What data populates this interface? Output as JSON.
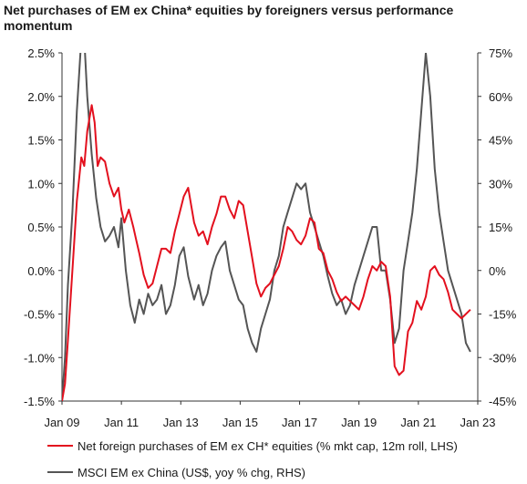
{
  "chart_data": {
    "type": "line",
    "title": "Net purchases of EM ex China* equities by foreigners versus performance momentum",
    "x_ticks": [
      "Jan 09",
      "Jan 11",
      "Jan 13",
      "Jan 15",
      "Jan 17",
      "Jan 19",
      "Jan 21",
      "Jan 23"
    ],
    "x_range": [
      2009.0,
      2023.0
    ],
    "y_left": {
      "ticks": [
        "2.5%",
        "2.0%",
        "1.5%",
        "1.0%",
        "0.5%",
        "0.0%",
        "-0.5%",
        "-1.0%",
        "-1.5%"
      ],
      "range": [
        -1.5,
        2.5
      ]
    },
    "y_right": {
      "ticks": [
        "75%",
        "60%",
        "45%",
        "30%",
        "15%",
        "0%",
        "-15%",
        "-30%",
        "-45%"
      ],
      "range": [
        -45,
        75
      ]
    },
    "grid": false,
    "legend_position": "bottom",
    "series": [
      {
        "name": "Net foreign purchases of EM ex CH* equities (% mkt cap, 12m roll, LHS)",
        "axis": "left",
        "color": "#e3101e",
        "x": [
          2009.0,
          2009.1,
          2009.2,
          2009.35,
          2009.5,
          2009.65,
          2009.75,
          2009.85,
          2010.0,
          2010.1,
          2010.2,
          2010.3,
          2010.45,
          2010.6,
          2010.75,
          2010.9,
          2011.0,
          2011.1,
          2011.25,
          2011.4,
          2011.5,
          2011.6,
          2011.75,
          2011.9,
          2012.05,
          2012.2,
          2012.35,
          2012.5,
          2012.65,
          2012.8,
          2012.95,
          2013.1,
          2013.25,
          2013.45,
          2013.6,
          2013.75,
          2013.9,
          2014.05,
          2014.2,
          2014.35,
          2014.5,
          2014.65,
          2014.8,
          2014.95,
          2015.1,
          2015.25,
          2015.4,
          2015.55,
          2015.7,
          2015.85,
          2016.0,
          2016.15,
          2016.3,
          2016.45,
          2016.6,
          2016.75,
          2016.9,
          2017.05,
          2017.2,
          2017.35,
          2017.5,
          2017.65,
          2017.8,
          2017.95,
          2018.1,
          2018.25,
          2018.4,
          2018.55,
          2018.7,
          2018.85,
          2019.0,
          2019.15,
          2019.3,
          2019.45,
          2019.6,
          2019.75,
          2019.9,
          2020.05,
          2020.2,
          2020.35,
          2020.5,
          2020.65,
          2020.8,
          2020.95,
          2021.1,
          2021.25,
          2021.4,
          2021.55,
          2021.7,
          2021.85,
          2022.0,
          2022.15,
          2022.3,
          2022.45,
          2022.6,
          2022.75
        ],
        "y": [
          -1.5,
          -1.3,
          -0.8,
          0.0,
          0.8,
          1.3,
          1.2,
          1.6,
          1.9,
          1.7,
          1.2,
          1.3,
          1.25,
          1.0,
          0.85,
          0.95,
          0.7,
          0.55,
          0.7,
          0.5,
          0.35,
          0.2,
          -0.05,
          -0.2,
          -0.15,
          0.05,
          0.25,
          0.25,
          0.2,
          0.45,
          0.65,
          0.85,
          0.95,
          0.55,
          0.4,
          0.45,
          0.3,
          0.5,
          0.65,
          0.85,
          0.85,
          0.7,
          0.6,
          0.8,
          0.75,
          0.45,
          0.15,
          -0.15,
          -0.3,
          -0.2,
          -0.15,
          -0.05,
          0.05,
          0.25,
          0.5,
          0.45,
          0.35,
          0.3,
          0.4,
          0.6,
          0.55,
          0.25,
          0.2,
          0.0,
          -0.1,
          -0.25,
          -0.35,
          -0.3,
          -0.35,
          -0.4,
          -0.45,
          -0.3,
          -0.1,
          0.05,
          0.0,
          0.1,
          0.05,
          -0.3,
          -1.1,
          -1.2,
          -1.15,
          -0.7,
          -0.6,
          -0.35,
          -0.45,
          -0.3,
          0.0,
          0.05,
          -0.05,
          -0.1,
          -0.25,
          -0.45,
          -0.5,
          -0.55,
          -0.5,
          -0.45
        ]
      },
      {
        "name": "MSCI EM ex China (US$, yoy % chg, RHS)",
        "axis": "right",
        "color": "#555555",
        "x": [
          2009.0,
          2009.1,
          2009.2,
          2009.35,
          2009.5,
          2009.65,
          2009.75,
          2009.85,
          2010.0,
          2010.15,
          2010.3,
          2010.45,
          2010.6,
          2010.75,
          2010.9,
          2011.0,
          2011.15,
          2011.3,
          2011.45,
          2011.6,
          2011.75,
          2011.9,
          2012.05,
          2012.2,
          2012.35,
          2012.5,
          2012.65,
          2012.8,
          2012.95,
          2013.1,
          2013.25,
          2013.45,
          2013.6,
          2013.75,
          2013.9,
          2014.05,
          2014.2,
          2014.35,
          2014.5,
          2014.65,
          2014.8,
          2014.95,
          2015.1,
          2015.25,
          2015.4,
          2015.55,
          2015.7,
          2015.85,
          2016.0,
          2016.15,
          2016.3,
          2016.45,
          2016.6,
          2016.75,
          2016.9,
          2017.05,
          2017.2,
          2017.35,
          2017.5,
          2017.65,
          2017.8,
          2017.95,
          2018.1,
          2018.25,
          2018.4,
          2018.55,
          2018.7,
          2018.85,
          2019.0,
          2019.15,
          2019.3,
          2019.45,
          2019.6,
          2019.75,
          2019.9,
          2020.05,
          2020.2,
          2020.35,
          2020.5,
          2020.65,
          2020.8,
          2020.95,
          2021.1,
          2021.25,
          2021.4,
          2021.55,
          2021.7,
          2021.85,
          2022.0,
          2022.15,
          2022.3,
          2022.45,
          2022.6,
          2022.75
        ],
        "y": [
          -45,
          -30,
          -5,
          20,
          55,
          80,
          80,
          60,
          40,
          25,
          15,
          10,
          12,
          15,
          8,
          18,
          0,
          -12,
          -18,
          -10,
          -15,
          -8,
          -12,
          -10,
          -5,
          -15,
          -12,
          -5,
          5,
          8,
          -2,
          -10,
          -5,
          -12,
          -8,
          0,
          5,
          8,
          10,
          0,
          -5,
          -10,
          -12,
          -20,
          -25,
          -28,
          -20,
          -15,
          -10,
          0,
          5,
          15,
          20,
          25,
          30,
          28,
          30,
          20,
          15,
          10,
          5,
          -2,
          -8,
          -12,
          -10,
          -15,
          -12,
          -5,
          0,
          5,
          10,
          15,
          15,
          0,
          0,
          -10,
          -25,
          -20,
          0,
          10,
          20,
          35,
          55,
          75,
          60,
          35,
          20,
          10,
          0,
          -5,
          -10,
          -15,
          -25,
          -28
        ]
      }
    ]
  }
}
